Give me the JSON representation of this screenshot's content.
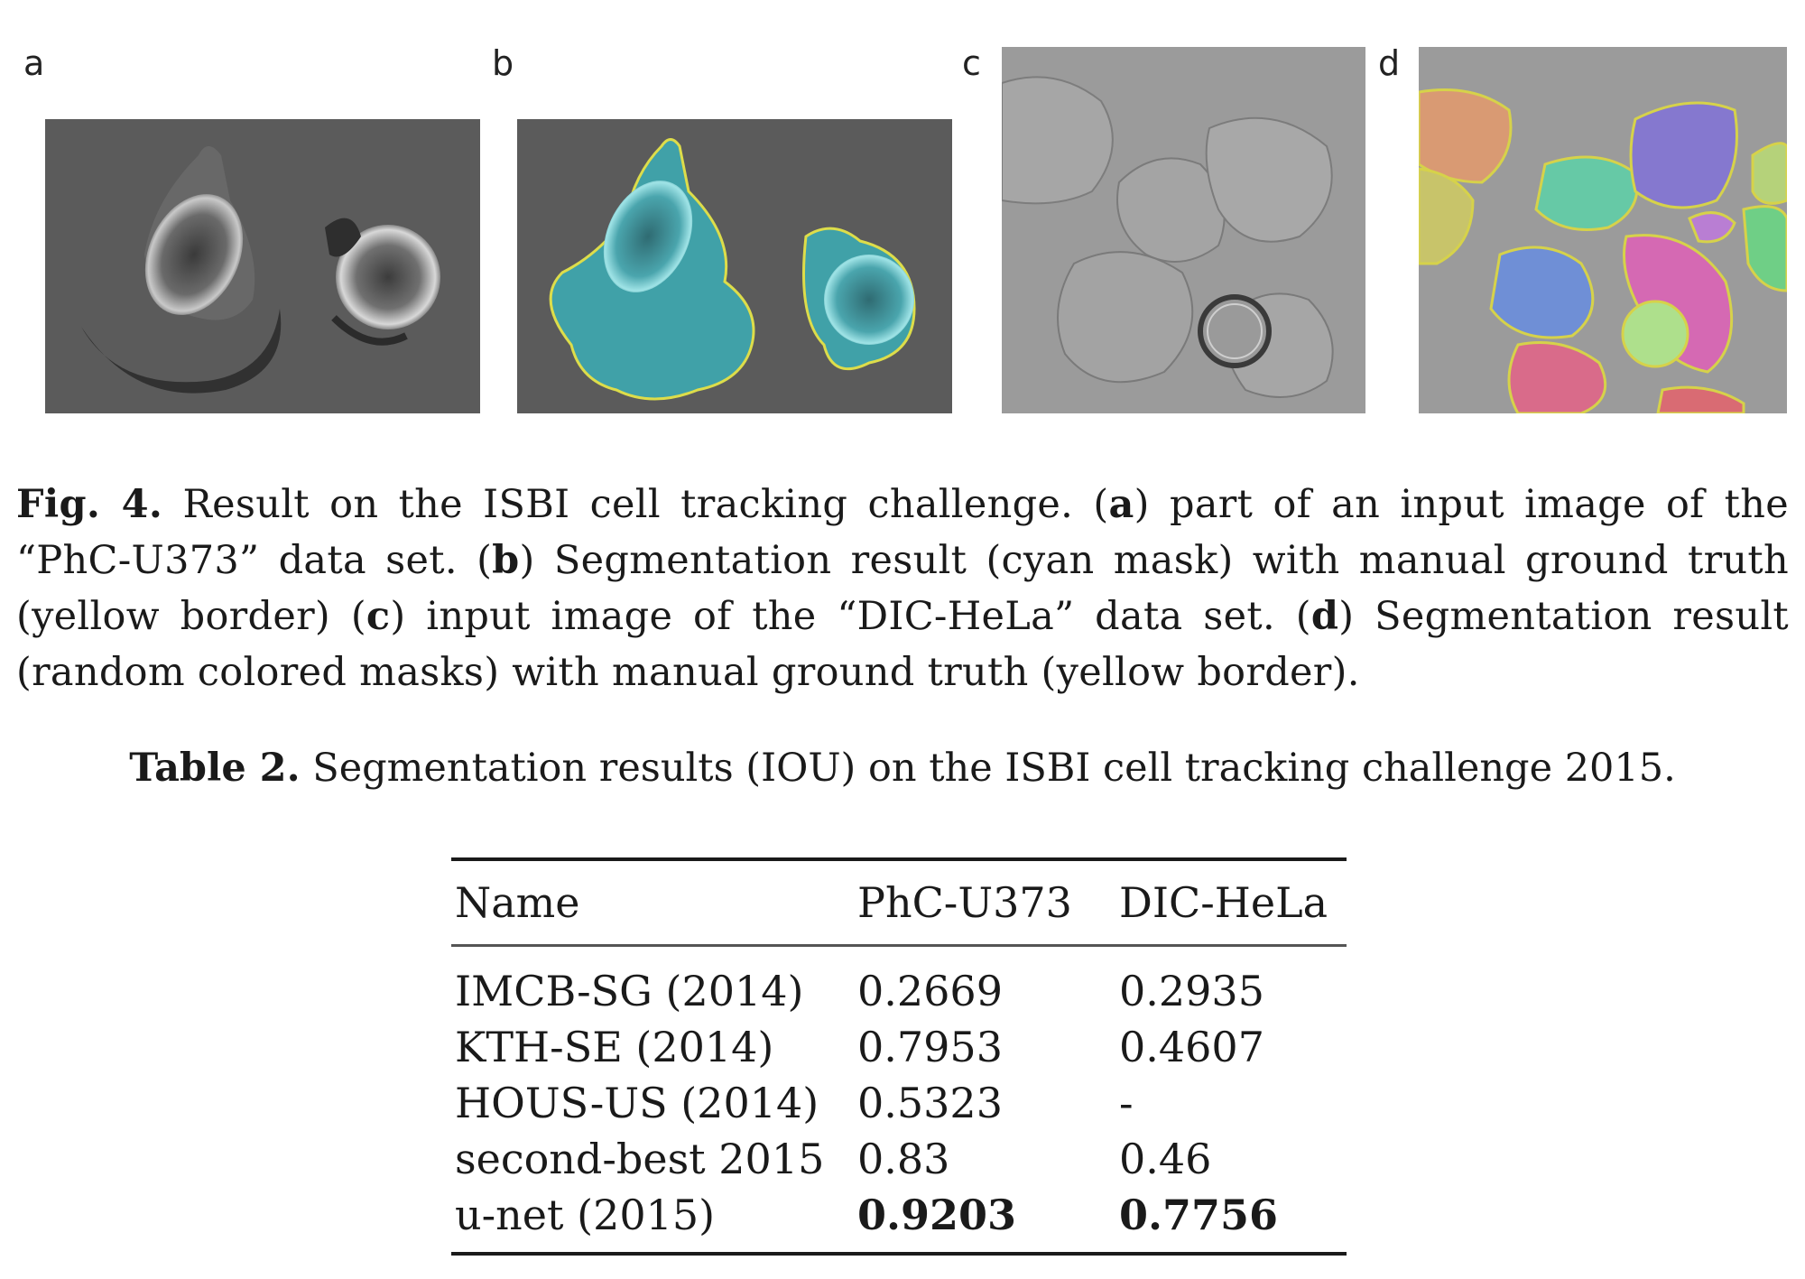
{
  "figure": {
    "panels": [
      {
        "letter": "a"
      },
      {
        "letter": "b"
      },
      {
        "letter": "c"
      },
      {
        "letter": "d"
      }
    ],
    "caption": {
      "fig_label": "Fig. 4.",
      "text1": " Result on the ISBI cell tracking challenge. (",
      "a": "a",
      "text2": ") part of an input image of the “PhC-U373” data set. (",
      "b": "b",
      "text3": ") Segmentation result (cyan mask) with manual ground truth (yellow border) (",
      "c": "c",
      "text4": ") input image of the “DIC-HeLa” data set. (",
      "d": "d",
      "text5": ") Segmentation result (random colored masks) with manual ground truth (yellow border)."
    }
  },
  "table": {
    "label": "Table 2.",
    "title": " Segmentation results (IOU) on the ISBI cell tracking challenge 2015.",
    "headers": [
      "Name",
      "PhC-U373",
      "DIC-HeLa"
    ],
    "rows": [
      {
        "name": "IMCB-SG (2014)",
        "phc": "0.2669",
        "dic": "0.2935"
      },
      {
        "name": "KTH-SE (2014)",
        "phc": "0.7953",
        "dic": "0.4607"
      },
      {
        "name": "HOUS-US (2014)",
        "phc": "0.5323",
        "dic": "-"
      },
      {
        "name": "second-best 2015",
        "phc": "0.83",
        "dic": "0.46"
      },
      {
        "name": "u-net (2015)",
        "phc": "0.9203",
        "dic": "0.7756"
      }
    ]
  }
}
